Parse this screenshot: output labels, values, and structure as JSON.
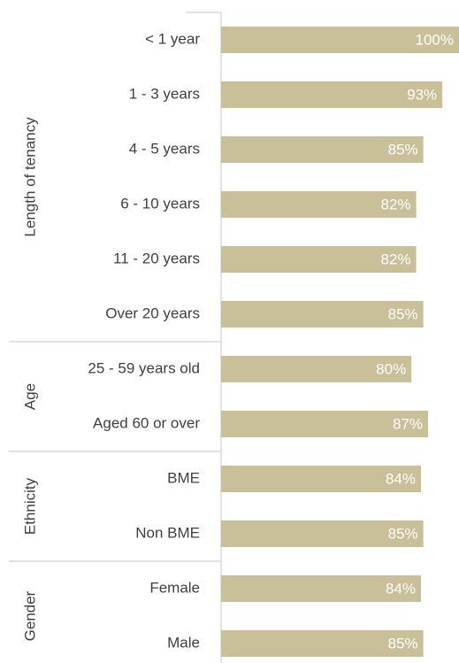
{
  "chart_data": {
    "type": "bar",
    "orientation": "horizontal",
    "color": "#c9bf98",
    "xlim": [
      0,
      100
    ],
    "groups": [
      {
        "name": "Length of tenancy",
        "categories": [
          "< 1 year",
          "1 - 3 years",
          "4 - 5 years",
          "6 - 10 years",
          "11 - 20 years",
          "Over 20 years"
        ],
        "values": [
          100,
          93,
          85,
          82,
          82,
          85
        ],
        "value_labels": [
          "100%",
          "93%",
          "85%",
          "82%",
          "82%",
          "85%"
        ]
      },
      {
        "name": "Age",
        "categories": [
          "25 - 59 years old",
          "Aged 60 or over"
        ],
        "values": [
          80,
          87
        ],
        "value_labels": [
          "80%",
          "87%"
        ]
      },
      {
        "name": "Ethnicity",
        "categories": [
          "BME",
          "Non BME"
        ],
        "values": [
          84,
          85
        ],
        "value_labels": [
          "84%",
          "85%"
        ]
      },
      {
        "name": "Gender",
        "categories": [
          "Female",
          "Male"
        ],
        "values": [
          84,
          85
        ],
        "value_labels": [
          "84%",
          "85%"
        ]
      }
    ]
  }
}
